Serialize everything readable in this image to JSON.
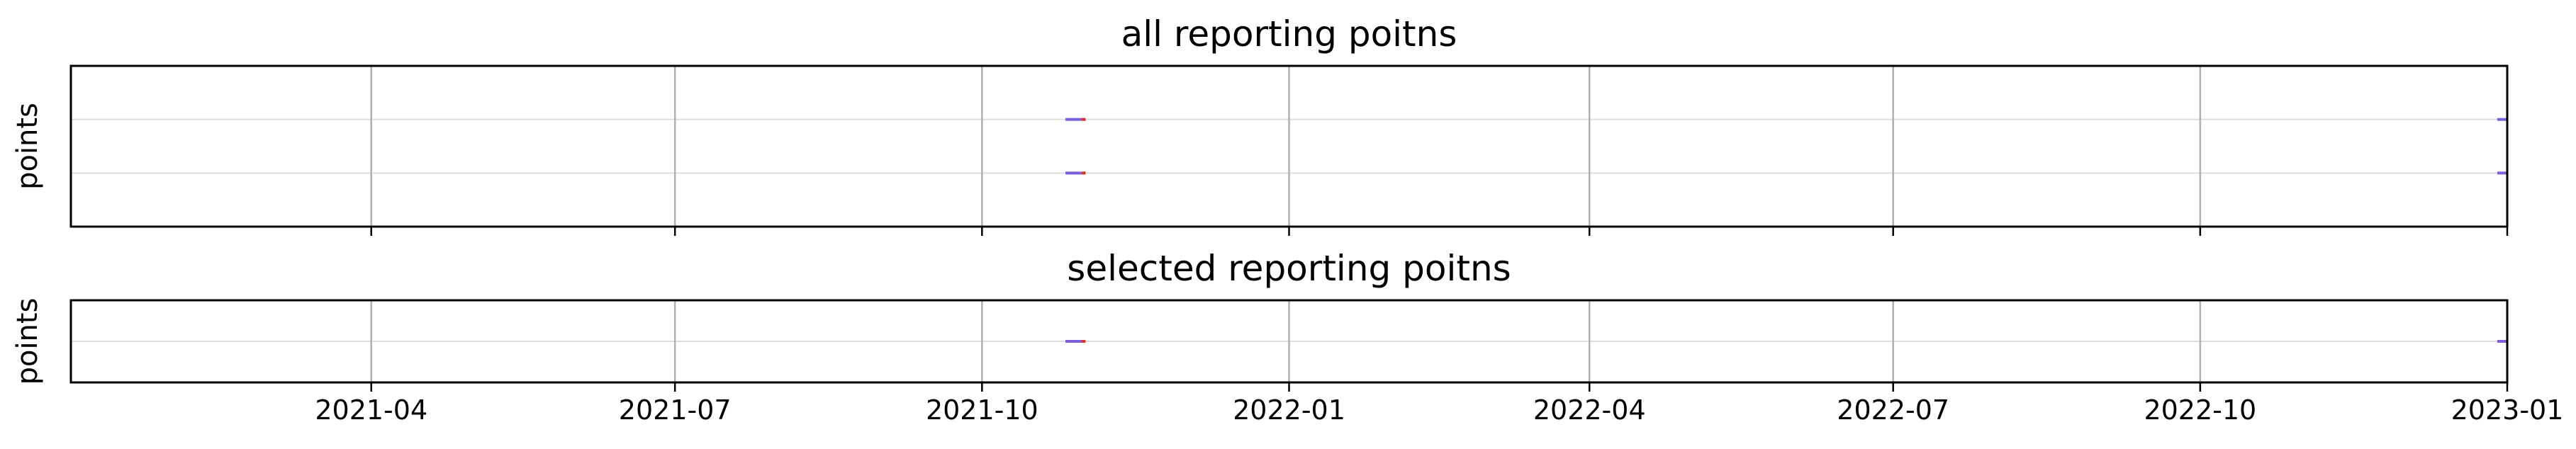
{
  "chart_data": [
    {
      "type": "scatter",
      "title": "all reporting poitns",
      "ylabel": "points",
      "xlabel": "",
      "xlim": [
        "2021-01-01",
        "2023-01-01"
      ],
      "grid": true,
      "rows": 2,
      "x_tick_labels": [],
      "series": [
        {
          "row": 1,
          "segments": [
            [
              "2021-10-26",
              "2021-11-01"
            ],
            [
              "2022-12-29",
              "2023-01-01"
            ]
          ]
        },
        {
          "row": 2,
          "segments": [
            [
              "2021-10-26",
              "2021-11-01"
            ],
            [
              "2022-12-29",
              "2023-01-01"
            ]
          ]
        }
      ]
    },
    {
      "type": "scatter",
      "title": "selected reporting poitns",
      "ylabel": "points",
      "xlabel": "",
      "xlim": [
        "2021-01-01",
        "2023-01-01"
      ],
      "grid": true,
      "rows": 1,
      "x_tick_labels": [
        "2021-04",
        "2021-07",
        "2021-10",
        "2022-01",
        "2022-04",
        "2022-07",
        "2022-10",
        "2023-01"
      ],
      "series": [
        {
          "row": 1,
          "segments": [
            [
              "2021-10-26",
              "2021-11-01"
            ],
            [
              "2022-12-29",
              "2023-01-01"
            ]
          ]
        }
      ]
    }
  ],
  "x_ticks": [
    "2021-04-01",
    "2021-07-01",
    "2021-10-01",
    "2022-01-01",
    "2022-04-01",
    "2022-07-01",
    "2022-10-01",
    "2023-01-01"
  ],
  "colors": {
    "segment": "#7a5fd8",
    "segment_end": "#e03020",
    "grid_major": "#b0b0b0",
    "grid_minor": "#dddddd",
    "axes": "#000000"
  }
}
